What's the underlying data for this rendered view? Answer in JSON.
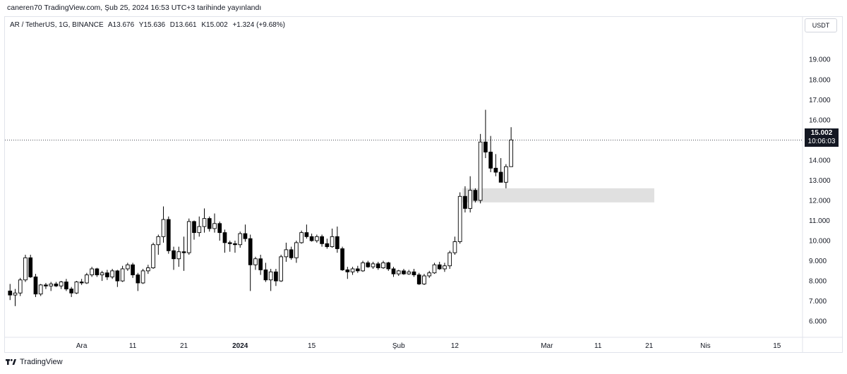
{
  "publish_info": "caneren70 TradingView.com, Şub 25, 2024 16:53 UTC+3 tarihinde yayınlandı",
  "legend": {
    "symbol": "AR / TetherUS, 1G, BINANCE",
    "open": "A13.676",
    "high": "Y15.636",
    "low": "D13.661",
    "close": "K15.002",
    "change": "+1.324 (+9.68%)"
  },
  "currency_button": "USDT",
  "last_price": {
    "value": "15.002",
    "countdown": "10:06:03"
  },
  "footer_brand": "TradingView",
  "colors": {
    "up_body": "#ffffff",
    "down_body": "#000000",
    "wick": "#000000",
    "zone": "#e0e0e0",
    "tag_bg": "#131722"
  },
  "chart_data": {
    "type": "candlestick",
    "price_axis_labels": [
      "19.000",
      "18.000",
      "17.000",
      "16.000",
      "15.000",
      "14.000",
      "13.000",
      "12.000",
      "11.000",
      "10.000",
      "9.000",
      "8.000",
      "7.000",
      "6.000"
    ],
    "ylim": [
      5.2,
      20.2
    ],
    "time_axis_labels": [
      "Ara",
      "11",
      "21",
      "2024",
      "15",
      "Şub",
      "12",
      "Mar",
      "11",
      "21",
      "Nis",
      "15"
    ],
    "time_axis_label_days": [
      8,
      18,
      28,
      39,
      53,
      70,
      81,
      99,
      109,
      119,
      130,
      144
    ],
    "x_range_days": [
      -7,
      149
    ],
    "last_price_line": 15.002,
    "zone": {
      "day_start": 82.5,
      "day_end": 120,
      "low": 11.9,
      "high": 12.6
    },
    "candles": [
      {
        "d": -6,
        "o": 7.5,
        "h": 7.85,
        "l": 7.05,
        "c": 7.3
      },
      {
        "d": -5,
        "o": 7.3,
        "h": 7.6,
        "l": 6.75,
        "c": 7.4
      },
      {
        "d": -4,
        "o": 7.4,
        "h": 8.15,
        "l": 7.25,
        "c": 8.05
      },
      {
        "d": -3,
        "o": 8.05,
        "h": 9.3,
        "l": 7.95,
        "c": 9.15
      },
      {
        "d": -2,
        "o": 9.15,
        "h": 9.3,
        "l": 8.15,
        "c": 8.2
      },
      {
        "d": -1,
        "o": 8.2,
        "h": 8.35,
        "l": 7.2,
        "c": 7.35
      },
      {
        "d": 0,
        "o": 7.35,
        "h": 7.85,
        "l": 7.25,
        "c": 7.8
      },
      {
        "d": 1,
        "o": 7.8,
        "h": 7.9,
        "l": 7.6,
        "c": 7.75
      },
      {
        "d": 2,
        "o": 7.75,
        "h": 7.95,
        "l": 7.5,
        "c": 7.85
      },
      {
        "d": 3,
        "o": 7.85,
        "h": 7.95,
        "l": 7.7,
        "c": 7.75
      },
      {
        "d": 4,
        "o": 7.75,
        "h": 8.0,
        "l": 7.6,
        "c": 7.95
      },
      {
        "d": 5,
        "o": 7.95,
        "h": 8.1,
        "l": 7.5,
        "c": 7.6
      },
      {
        "d": 6,
        "o": 7.6,
        "h": 7.7,
        "l": 7.2,
        "c": 7.4
      },
      {
        "d": 7,
        "o": 7.4,
        "h": 8.0,
        "l": 7.35,
        "c": 7.95
      },
      {
        "d": 8,
        "o": 7.95,
        "h": 8.1,
        "l": 7.8,
        "c": 7.9
      },
      {
        "d": 9,
        "o": 7.9,
        "h": 8.4,
        "l": 7.85,
        "c": 8.3
      },
      {
        "d": 10,
        "o": 8.3,
        "h": 8.7,
        "l": 8.2,
        "c": 8.6
      },
      {
        "d": 11,
        "o": 8.6,
        "h": 8.65,
        "l": 8.2,
        "c": 8.3
      },
      {
        "d": 12,
        "o": 8.3,
        "h": 8.5,
        "l": 8.0,
        "c": 8.4
      },
      {
        "d": 13,
        "o": 8.4,
        "h": 8.55,
        "l": 8.05,
        "c": 8.2
      },
      {
        "d": 14,
        "o": 8.2,
        "h": 8.6,
        "l": 8.1,
        "c": 8.5
      },
      {
        "d": 15,
        "o": 8.5,
        "h": 8.55,
        "l": 7.7,
        "c": 8.0
      },
      {
        "d": 16,
        "o": 8.0,
        "h": 8.75,
        "l": 7.95,
        "c": 8.6
      },
      {
        "d": 17,
        "o": 8.6,
        "h": 8.9,
        "l": 8.5,
        "c": 8.8
      },
      {
        "d": 18,
        "o": 8.8,
        "h": 8.9,
        "l": 8.15,
        "c": 8.3
      },
      {
        "d": 19,
        "o": 8.3,
        "h": 8.4,
        "l": 7.5,
        "c": 7.9
      },
      {
        "d": 20,
        "o": 7.9,
        "h": 8.6,
        "l": 7.85,
        "c": 8.5
      },
      {
        "d": 21,
        "o": 8.5,
        "h": 8.8,
        "l": 8.35,
        "c": 8.65
      },
      {
        "d": 22,
        "o": 8.65,
        "h": 9.9,
        "l": 8.6,
        "c": 9.8
      },
      {
        "d": 23,
        "o": 9.8,
        "h": 10.3,
        "l": 9.3,
        "c": 10.2
      },
      {
        "d": 24,
        "o": 10.2,
        "h": 11.7,
        "l": 9.9,
        "c": 11.05
      },
      {
        "d": 25,
        "o": 11.05,
        "h": 11.2,
        "l": 9.35,
        "c": 9.5
      },
      {
        "d": 26,
        "o": 9.5,
        "h": 9.7,
        "l": 8.55,
        "c": 9.1
      },
      {
        "d": 27,
        "o": 9.1,
        "h": 9.7,
        "l": 8.7,
        "c": 9.45
      },
      {
        "d": 28,
        "o": 9.45,
        "h": 10.2,
        "l": 8.5,
        "c": 9.4
      },
      {
        "d": 29,
        "o": 9.4,
        "h": 11.1,
        "l": 9.3,
        "c": 10.95
      },
      {
        "d": 30,
        "o": 10.95,
        "h": 11.0,
        "l": 10.05,
        "c": 10.4
      },
      {
        "d": 31,
        "o": 10.4,
        "h": 11.2,
        "l": 10.2,
        "c": 10.7
      },
      {
        "d": 32,
        "o": 10.7,
        "h": 11.6,
        "l": 10.4,
        "c": 11.1
      },
      {
        "d": 33,
        "o": 11.1,
        "h": 11.2,
        "l": 10.45,
        "c": 10.6
      },
      {
        "d": 34,
        "o": 10.6,
        "h": 11.35,
        "l": 10.4,
        "c": 10.85
      },
      {
        "d": 35,
        "o": 10.85,
        "h": 10.95,
        "l": 10.0,
        "c": 10.4
      },
      {
        "d": 36,
        "o": 10.4,
        "h": 10.55,
        "l": 9.4,
        "c": 9.9
      },
      {
        "d": 37,
        "o": 9.9,
        "h": 10.0,
        "l": 9.45,
        "c": 9.85
      },
      {
        "d": 38,
        "o": 9.85,
        "h": 10.0,
        "l": 9.4,
        "c": 9.8
      },
      {
        "d": 39,
        "o": 9.8,
        "h": 10.45,
        "l": 9.65,
        "c": 10.35
      },
      {
        "d": 40,
        "o": 10.35,
        "h": 10.8,
        "l": 9.95,
        "c": 10.1
      },
      {
        "d": 41,
        "o": 10.1,
        "h": 10.3,
        "l": 7.5,
        "c": 8.8
      },
      {
        "d": 42,
        "o": 8.8,
        "h": 9.2,
        "l": 8.55,
        "c": 9.1
      },
      {
        "d": 43,
        "o": 9.1,
        "h": 9.3,
        "l": 8.3,
        "c": 8.55
      },
      {
        "d": 44,
        "o": 8.55,
        "h": 8.9,
        "l": 7.95,
        "c": 8.05
      },
      {
        "d": 45,
        "o": 8.05,
        "h": 8.6,
        "l": 7.5,
        "c": 8.45
      },
      {
        "d": 46,
        "o": 8.45,
        "h": 8.6,
        "l": 7.75,
        "c": 8.0
      },
      {
        "d": 47,
        "o": 8.0,
        "h": 9.3,
        "l": 7.95,
        "c": 9.2
      },
      {
        "d": 48,
        "o": 9.2,
        "h": 9.9,
        "l": 8.95,
        "c": 9.55
      },
      {
        "d": 49,
        "o": 9.55,
        "h": 9.7,
        "l": 9.05,
        "c": 9.15
      },
      {
        "d": 50,
        "o": 9.15,
        "h": 10.0,
        "l": 8.9,
        "c": 9.9
      },
      {
        "d": 51,
        "o": 9.9,
        "h": 10.5,
        "l": 9.85,
        "c": 10.4
      },
      {
        "d": 52,
        "o": 10.4,
        "h": 10.8,
        "l": 10.1,
        "c": 10.2
      },
      {
        "d": 53,
        "o": 10.2,
        "h": 10.35,
        "l": 9.95,
        "c": 10.0
      },
      {
        "d": 54,
        "o": 10.0,
        "h": 10.3,
        "l": 9.9,
        "c": 10.2
      },
      {
        "d": 55,
        "o": 10.2,
        "h": 10.3,
        "l": 9.7,
        "c": 9.85
      },
      {
        "d": 56,
        "o": 9.85,
        "h": 10.1,
        "l": 9.6,
        "c": 9.7
      },
      {
        "d": 57,
        "o": 9.7,
        "h": 10.6,
        "l": 9.65,
        "c": 10.2
      },
      {
        "d": 58,
        "o": 10.2,
        "h": 10.7,
        "l": 9.4,
        "c": 9.6
      },
      {
        "d": 59,
        "o": 9.6,
        "h": 9.7,
        "l": 8.5,
        "c": 8.55
      },
      {
        "d": 60,
        "o": 8.55,
        "h": 8.7,
        "l": 8.1,
        "c": 8.45
      },
      {
        "d": 61,
        "o": 8.45,
        "h": 8.7,
        "l": 8.3,
        "c": 8.6
      },
      {
        "d": 62,
        "o": 8.6,
        "h": 8.75,
        "l": 8.4,
        "c": 8.5
      },
      {
        "d": 63,
        "o": 8.5,
        "h": 9.0,
        "l": 8.45,
        "c": 8.9
      },
      {
        "d": 64,
        "o": 8.9,
        "h": 9.0,
        "l": 8.65,
        "c": 8.7
      },
      {
        "d": 65,
        "o": 8.7,
        "h": 8.95,
        "l": 8.6,
        "c": 8.85
      },
      {
        "d": 66,
        "o": 8.85,
        "h": 8.95,
        "l": 8.55,
        "c": 8.65
      },
      {
        "d": 67,
        "o": 8.65,
        "h": 9.0,
        "l": 8.6,
        "c": 8.9
      },
      {
        "d": 68,
        "o": 8.9,
        "h": 8.95,
        "l": 8.5,
        "c": 8.6
      },
      {
        "d": 69,
        "o": 8.6,
        "h": 8.7,
        "l": 8.2,
        "c": 8.35
      },
      {
        "d": 70,
        "o": 8.35,
        "h": 8.55,
        "l": 8.25,
        "c": 8.5
      },
      {
        "d": 71,
        "o": 8.5,
        "h": 8.6,
        "l": 8.3,
        "c": 8.35
      },
      {
        "d": 72,
        "o": 8.35,
        "h": 8.55,
        "l": 8.3,
        "c": 8.45
      },
      {
        "d": 73,
        "o": 8.45,
        "h": 8.6,
        "l": 8.2,
        "c": 8.3
      },
      {
        "d": 74,
        "o": 8.3,
        "h": 8.4,
        "l": 7.8,
        "c": 7.85
      },
      {
        "d": 75,
        "o": 7.85,
        "h": 8.35,
        "l": 7.8,
        "c": 8.25
      },
      {
        "d": 76,
        "o": 8.25,
        "h": 8.5,
        "l": 8.15,
        "c": 8.4
      },
      {
        "d": 77,
        "o": 8.4,
        "h": 8.9,
        "l": 8.35,
        "c": 8.8
      },
      {
        "d": 78,
        "o": 8.8,
        "h": 8.95,
        "l": 8.55,
        "c": 8.6
      },
      {
        "d": 79,
        "o": 8.6,
        "h": 8.9,
        "l": 8.45,
        "c": 8.75
      },
      {
        "d": 80,
        "o": 8.75,
        "h": 9.5,
        "l": 8.6,
        "c": 9.4
      },
      {
        "d": 81,
        "o": 9.4,
        "h": 10.2,
        "l": 9.3,
        "c": 9.95
      },
      {
        "d": 82,
        "o": 9.95,
        "h": 12.4,
        "l": 9.85,
        "c": 12.2
      },
      {
        "d": 83,
        "o": 12.2,
        "h": 12.7,
        "l": 11.4,
        "c": 11.6
      },
      {
        "d": 84,
        "o": 11.6,
        "h": 13.2,
        "l": 11.4,
        "c": 12.5
      },
      {
        "d": 85,
        "o": 12.5,
        "h": 12.6,
        "l": 11.9,
        "c": 12.0
      },
      {
        "d": 86,
        "o": 12.0,
        "h": 15.3,
        "l": 11.85,
        "c": 14.9
      },
      {
        "d": 87,
        "o": 14.9,
        "h": 16.5,
        "l": 14.1,
        "c": 14.4
      },
      {
        "d": 88,
        "o": 14.4,
        "h": 15.2,
        "l": 13.4,
        "c": 13.6
      },
      {
        "d": 89,
        "o": 13.6,
        "h": 14.3,
        "l": 13.2,
        "c": 13.4
      },
      {
        "d": 90,
        "o": 13.4,
        "h": 14.1,
        "l": 12.9,
        "c": 12.9
      },
      {
        "d": 91,
        "o": 12.9,
        "h": 13.8,
        "l": 12.6,
        "c": 13.676
      },
      {
        "d": 92,
        "o": 13.676,
        "h": 15.636,
        "l": 13.661,
        "c": 15.002
      }
    ]
  }
}
